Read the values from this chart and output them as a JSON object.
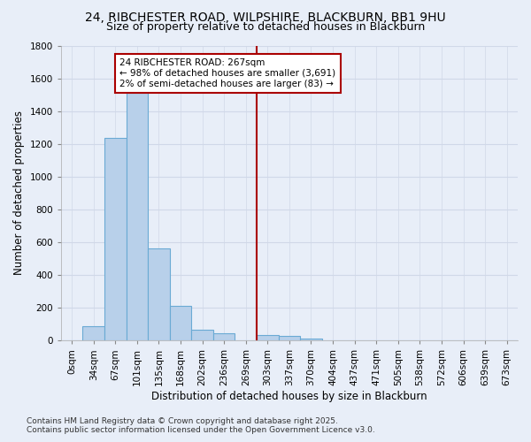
{
  "title_line1": "24, RIBCHESTER ROAD, WILPSHIRE, BLACKBURN, BB1 9HU",
  "title_line2": "Size of property relative to detached houses in Blackburn",
  "xlabel": "Distribution of detached houses by size in Blackburn",
  "ylabel": "Number of detached properties",
  "categories": [
    "0sqm",
    "34sqm",
    "67sqm",
    "101sqm",
    "135sqm",
    "168sqm",
    "202sqm",
    "236sqm",
    "269sqm",
    "303sqm",
    "337sqm",
    "370sqm",
    "404sqm",
    "437sqm",
    "471sqm",
    "505sqm",
    "538sqm",
    "572sqm",
    "606sqm",
    "639sqm",
    "673sqm"
  ],
  "values": [
    0,
    90,
    1235,
    1510,
    560,
    210,
    65,
    45,
    0,
    35,
    28,
    10,
    0,
    0,
    0,
    0,
    0,
    0,
    0,
    0,
    0
  ],
  "bar_color": "#b8d0ea",
  "bar_edge_color": "#6aaad4",
  "vline_x": 8.5,
  "annotation_text_line1": "24 RIBCHESTER ROAD: 267sqm",
  "annotation_text_line2": "← 98% of detached houses are smaller (3,691)",
  "annotation_text_line3": "2% of semi-detached houses are larger (83) →",
  "annotation_box_color": "#ffffff",
  "annotation_box_edge_color": "#aa0000",
  "vline_color": "#aa0000",
  "background_color": "#e8eef8",
  "grid_color": "#d0d8e8",
  "ylim": [
    0,
    1800
  ],
  "yticks": [
    0,
    200,
    400,
    600,
    800,
    1000,
    1200,
    1400,
    1600,
    1800
  ],
  "footnote1": "Contains HM Land Registry data © Crown copyright and database right 2025.",
  "footnote2": "Contains public sector information licensed under the Open Government Licence v3.0.",
  "title_fontsize": 10,
  "subtitle_fontsize": 9,
  "axis_label_fontsize": 8.5,
  "tick_fontsize": 7.5,
  "annotation_fontsize": 7.5,
  "footnote_fontsize": 6.5
}
